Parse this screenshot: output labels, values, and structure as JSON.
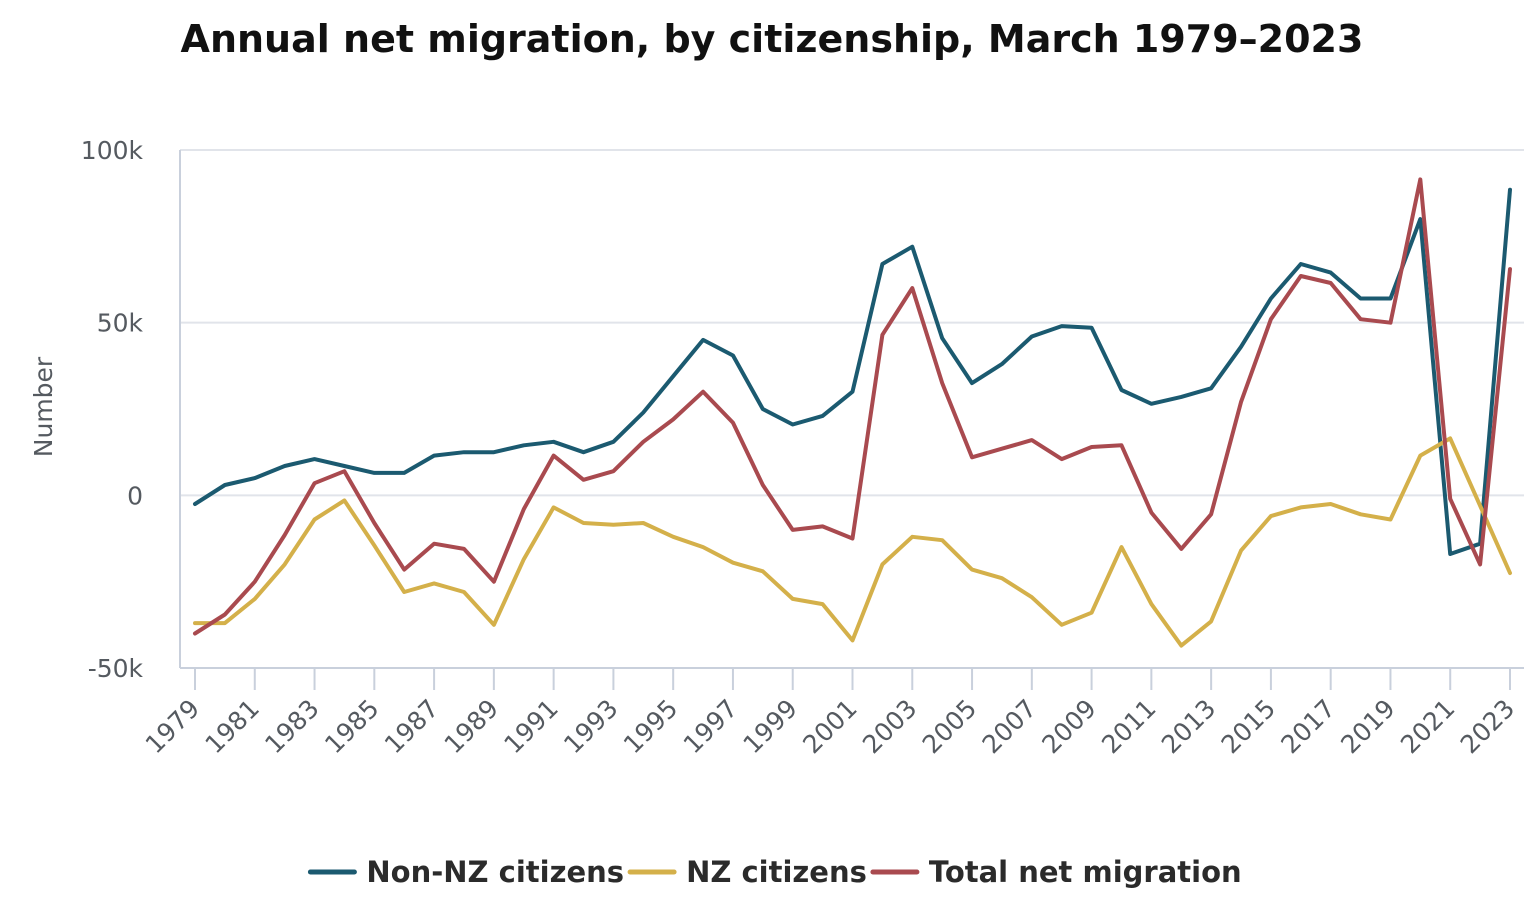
{
  "chart_data": {
    "type": "line",
    "title": "Annual net migration, by citizenship, March 1979–2023",
    "xlabel": "",
    "ylabel": "Number",
    "ylim": [
      -50000,
      100000
    ],
    "xlim": [
      1979,
      2023
    ],
    "yticks": [
      {
        "value": 100000,
        "label": "100k"
      },
      {
        "value": 50000,
        "label": "50k"
      },
      {
        "value": 0,
        "label": "0"
      },
      {
        "value": -50000,
        "label": "-50k"
      }
    ],
    "xticks": [
      "1979",
      "1981",
      "1983",
      "1985",
      "1987",
      "1989",
      "1991",
      "1993",
      "1995",
      "1997",
      "1999",
      "2001",
      "2003",
      "2005",
      "2007",
      "2009",
      "2011",
      "2013",
      "2015",
      "2017",
      "2019",
      "2021",
      "2023"
    ],
    "grid": true,
    "legend_position": "bottom",
    "x": [
      1979,
      1980,
      1981,
      1982,
      1983,
      1984,
      1985,
      1986,
      1987,
      1988,
      1989,
      1990,
      1991,
      1992,
      1993,
      1994,
      1995,
      1996,
      1997,
      1998,
      1999,
      2000,
      2001,
      2002,
      2003,
      2004,
      2005,
      2006,
      2007,
      2008,
      2009,
      2010,
      2011,
      2012,
      2013,
      2014,
      2015,
      2016,
      2017,
      2018,
      2019,
      2020,
      2021,
      2022,
      2023
    ],
    "series": [
      {
        "name": "Non-NZ citizens",
        "color": "#1b5a70",
        "values": [
          -2500,
          3000,
          5000,
          8500,
          10500,
          8500,
          6500,
          6500,
          11500,
          12500,
          12500,
          14500,
          15500,
          12500,
          15500,
          24000,
          34500,
          45000,
          40500,
          25000,
          20500,
          23000,
          30000,
          67000,
          72000,
          45500,
          32500,
          38000,
          46000,
          49000,
          48500,
          30500,
          26500,
          28500,
          31000,
          43000,
          57000,
          67000,
          64500,
          57000,
          57000,
          80000,
          -17000,
          -14000,
          88500
        ]
      },
      {
        "name": "NZ citizens",
        "color": "#d4b04a",
        "values": [
          -37000,
          -37000,
          -30000,
          -20000,
          -7000,
          -1500,
          -14500,
          -28000,
          -25500,
          -28000,
          -37500,
          -18500,
          -3500,
          -8000,
          -8500,
          -8000,
          -12000,
          -15000,
          -19500,
          -22000,
          -30000,
          -31500,
          -42000,
          -20000,
          -12000,
          -13000,
          -21500,
          -24000,
          -29500,
          -37500,
          -34000,
          -15000,
          -31500,
          -43500,
          -36500,
          -16000,
          -6000,
          -3500,
          -2500,
          -5500,
          -7000,
          11500,
          16500,
          -3000,
          -22500
        ]
      },
      {
        "name": "Total net migration",
        "color": "#a94a4f",
        "values": [
          -40000,
          -34500,
          -25000,
          -11500,
          3500,
          7000,
          -8000,
          -21500,
          -14000,
          -15500,
          -25000,
          -4000,
          11500,
          4500,
          7000,
          15500,
          22000,
          30000,
          21000,
          3000,
          -10000,
          -9000,
          -12500,
          46500,
          60000,
          32500,
          11000,
          13500,
          16000,
          10500,
          14000,
          14500,
          -5000,
          -15500,
          -5500,
          27000,
          51000,
          63500,
          61500,
          51000,
          50000,
          91500,
          -1000,
          -20000,
          65500
        ]
      }
    ]
  }
}
